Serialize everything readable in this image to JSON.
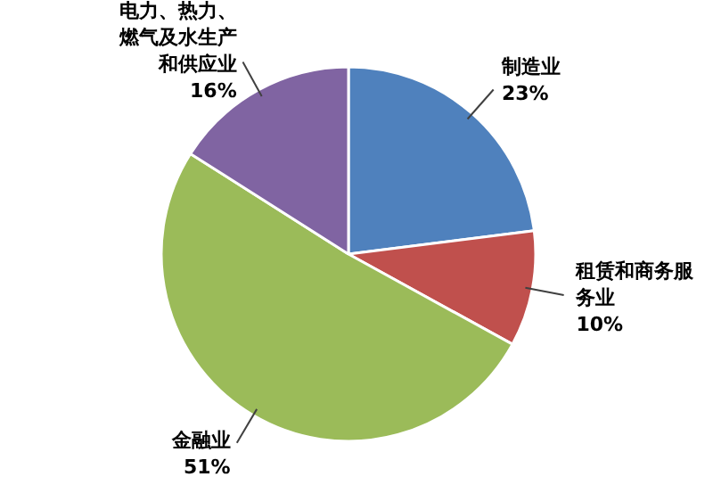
{
  "chart_data": {
    "type": "pie",
    "categories": [
      "制造业",
      "租赁和商务服务业",
      "金融业",
      "电力、热力、燃气及水生产和供应业"
    ],
    "values": [
      23,
      10,
      51,
      16
    ],
    "colors": [
      "#4f81bd",
      "#c0504d",
      "#9bbb59",
      "#8064a2"
    ],
    "value_labels": [
      "23%",
      "10%",
      "51%",
      "16%"
    ]
  }
}
